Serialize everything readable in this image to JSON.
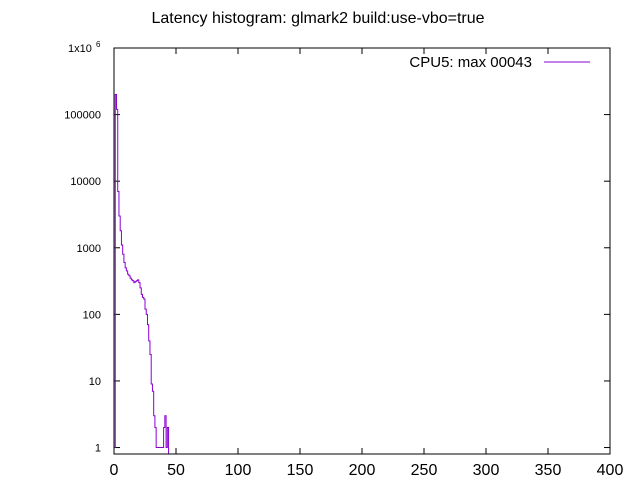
{
  "chart_data": {
    "type": "line",
    "title": "Latency histogram:  glmark2 build:use-vbo=true",
    "xlabel": "",
    "ylabel": "",
    "xlim": [
      0,
      400
    ],
    "ylim": [
      0.8,
      1000000
    ],
    "yscale": "log",
    "grid": false,
    "legend_position": "top-right",
    "x_ticks": [
      0,
      50,
      100,
      150,
      200,
      250,
      300,
      350,
      400
    ],
    "x_tick_labels": [
      "0",
      "50",
      "100",
      "150",
      "200",
      "250",
      "300",
      "350",
      "400"
    ],
    "y_ticks": [
      1,
      10,
      100,
      1000,
      10000,
      100000
    ],
    "y_tick_labels": [
      "1",
      "10",
      "100",
      "1000",
      "10000",
      "100000"
    ],
    "y_top_label": {
      "base": "1x10",
      "exponent": "6",
      "value": 1000000
    },
    "series": [
      {
        "name": "CPU5: max 00043",
        "color": "#8a00d4",
        "x": [
          0,
          1,
          2,
          3,
          4,
          5,
          6,
          7,
          8,
          9,
          10,
          11,
          12,
          13,
          14,
          15,
          16,
          17,
          18,
          19,
          20,
          21,
          22,
          23,
          24,
          25,
          26,
          27,
          28,
          29,
          30,
          31,
          32,
          33,
          34,
          35,
          36,
          37,
          38,
          39,
          40,
          41,
          42,
          43
        ],
        "y": [
          1,
          200000,
          120000,
          7000,
          3000,
          1800,
          1100,
          800,
          600,
          500,
          450,
          400,
          380,
          350,
          330,
          320,
          300,
          310,
          320,
          330,
          300,
          250,
          200,
          180,
          170,
          120,
          100,
          70,
          40,
          25,
          9,
          7,
          3,
          2,
          1,
          1,
          1,
          1,
          1,
          1,
          2,
          3,
          1,
          2
        ]
      }
    ]
  }
}
